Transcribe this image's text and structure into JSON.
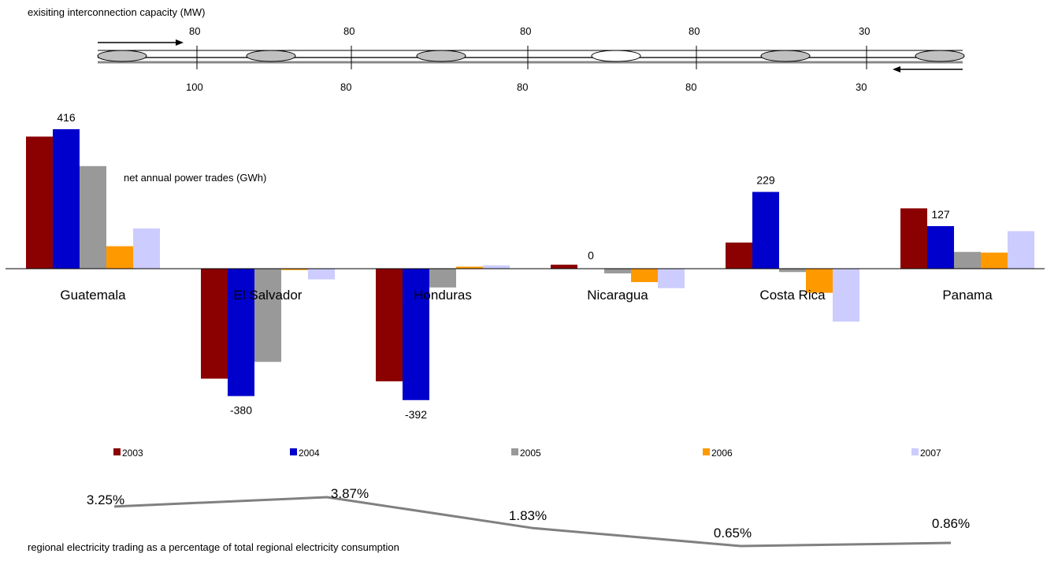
{
  "capacity": {
    "title": "exisiting interconnection capacity (MW)",
    "upper_values": [
      "80",
      "80",
      "80",
      "80",
      "30"
    ],
    "lower_values": [
      "100",
      "80",
      "80",
      "80",
      "30"
    ]
  },
  "chart_data": [
    {
      "type": "bar",
      "title": "net annual power trades (GWh)",
      "categories": [
        "Guatemala",
        "El Salvador",
        "Honduras",
        "Nicaragua",
        "Costa Rica",
        "Panama"
      ],
      "series": [
        {
          "name": "2003",
          "color": "#8b0000",
          "values": [
            394,
            -328,
            -336,
            12,
            78,
            180
          ]
        },
        {
          "name": "2004",
          "color": "#0000cc",
          "values": [
            416,
            -380,
            -392,
            0,
            229,
            127
          ]
        },
        {
          "name": "2005",
          "color": "#999999",
          "values": [
            306,
            -278,
            -56,
            -14,
            -10,
            50
          ]
        },
        {
          "name": "2006",
          "color": "#ff9900",
          "values": [
            67,
            -4,
            6,
            -40,
            -72,
            48
          ]
        },
        {
          "name": "2007",
          "color": "#ccccff",
          "values": [
            120,
            -32,
            10,
            -58,
            -158,
            112
          ]
        }
      ],
      "data_labels": [
        {
          "category": "Guatemala",
          "series": "2004",
          "text": "416"
        },
        {
          "category": "El Salvador",
          "series": "2004",
          "text": "-380"
        },
        {
          "category": "Honduras",
          "series": "2004",
          "text": "-392"
        },
        {
          "category": "Nicaragua",
          "series": "2004",
          "text": "0"
        },
        {
          "category": "Costa Rica",
          "series": "2004",
          "text": "229"
        },
        {
          "category": "Panama",
          "series": "2004",
          "text": "127"
        }
      ],
      "legend": "bottom",
      "grid": false
    },
    {
      "type": "line",
      "title": "regional electricity  trading as a percentage of total regional electricity consumption",
      "x": [
        "2003",
        "2004",
        "2005",
        "2006",
        "2007"
      ],
      "values": [
        3.25,
        3.87,
        1.83,
        0.65,
        0.86
      ],
      "labels": [
        "3.25%",
        "3.87%",
        "1.83%",
        "0.65%",
        "0.86%"
      ],
      "color": "#808080"
    }
  ]
}
